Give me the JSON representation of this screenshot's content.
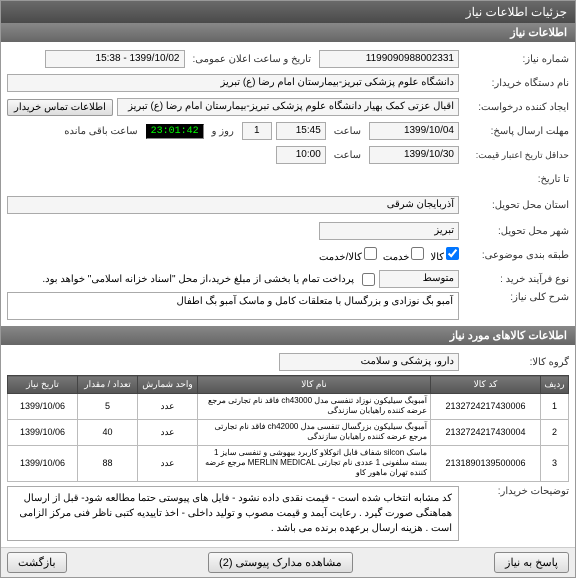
{
  "window": {
    "title": "جزئیات اطلاعات نیاز"
  },
  "section": {
    "info": "اطلاعات نیاز",
    "items": "اطلاعات کالاهای مورد نیاز"
  },
  "fields": {
    "need_no_label": "شماره نیاز:",
    "need_no": "1199090988002331",
    "announce_label": "تاریخ و ساعت اعلان عمومی:",
    "announce": "1399/10/02 - 15:38",
    "buyer_label": "نام دستگاه خریدار:",
    "buyer": "دانشگاه علوم پزشکی تبریز-بیمارستان امام رضا (ع) تبریز",
    "creator_label": "ایجاد کننده درخواست:",
    "creator": "اقبال عزتی کمک بهیار دانشگاه علوم پزشکی تبریز-بیمارستان امام رضا (ع) تبریز",
    "buyer_contact_btn": "اطلاعات تماس خریدار",
    "deadline_label": "مهلت ارسال پاسخ:",
    "deadline_date": "1399/10/04",
    "time_label": "ساعت",
    "deadline_time": "15:45",
    "day_label": "روز و",
    "days_left": "1",
    "timer": "23:01:42",
    "remaining_label": "ساعت باقی مانده",
    "min_valid_label": "حداقل تاریخ اعتبار قیمت:",
    "min_valid_date": "1399/10/30",
    "min_valid_time": "10:00",
    "to_date_label": "تا تاریخ:",
    "province_label": "استان محل تحویل:",
    "province": "آذربایجان شرقی",
    "city_label": "شهر محل تحویل:",
    "city": "تبریز",
    "classify_label": "طبقه بندی موضوعی:",
    "good_label": "کالا",
    "service_label": "خدمت",
    "service_good_label": "کالا/خدمت",
    "process_label": "نوع فرآیند خرید :",
    "process": "متوسط",
    "note_inline": "پرداخت تمام یا بخشی از مبلغ خرید،از محل \"اسناد خزانه اسلامی\" خواهد بود.",
    "main_desc_label": "شرح کلی نیاز:",
    "main_desc": "آمبو بگ نوزادی و بزرگسال با متعلقات کامل و ماسک آمبو بگ اطفال",
    "group_label": "گروه کالا:",
    "group": "دارو، پزشکی و سلامت",
    "buyer_notes_label": "توضیحات خریدار:",
    "buyer_notes": "کد مشابه انتخاب شده است - قیمت نقدی داده نشود - فایل های پیوستی حتما مطالعه شود- قبل از ارسال هماهنگی صورت گیرد . رعایت آیمد و قیمت مصوب و تولید داخلی -  اخذ تاییدیه کتبی ناظر فنی مرکز الزامی است . هزینه ارسال برعهده برنده می باشد ."
  },
  "table": {
    "headers": [
      "ردیف",
      "کد کالا",
      "نام کالا",
      "واحد شمارش",
      "تعداد / مقدار",
      "تاریخ نیاز"
    ],
    "rows": [
      {
        "idx": "1",
        "code": "2132724217430006",
        "name": "آمبوبگ سیلیکون نوزاد تنفسی مدل ch43000 فاقد نام تجارتی مرجع عرضه کننده راهیابان سازندگی",
        "unit": "عدد",
        "qty": "5",
        "date": "1399/10/06"
      },
      {
        "idx": "2",
        "code": "2132724217430004",
        "name": "آمبوبگ سیلیکون بزرگسال تنفسی مدل ch42000 فاقد نام تجارتی مرجع عرضه کننده راهیابان سازندگی",
        "unit": "عدد",
        "qty": "40",
        "date": "1399/10/06"
      },
      {
        "idx": "3",
        "code": "2131890139500006",
        "name": "ماسک silcon شفاف قابل اتوکلاو کاربرد بیهوشی و تنفسی سایز 1 بسته سلفونی 1 عددی نام تجارتی MERLIN MEDICAL مرجع عرضه کننده تهران ماهور کاو",
        "unit": "عدد",
        "qty": "88",
        "date": "1399/10/06"
      }
    ]
  },
  "footer": {
    "reply": "پاسخ به نیاز",
    "attachments": "مشاهده مدارک پیوستی (2)",
    "back": "بازگشت"
  },
  "colors": {
    "header_bg": "#666666",
    "timer_fg": "#00ff00"
  }
}
